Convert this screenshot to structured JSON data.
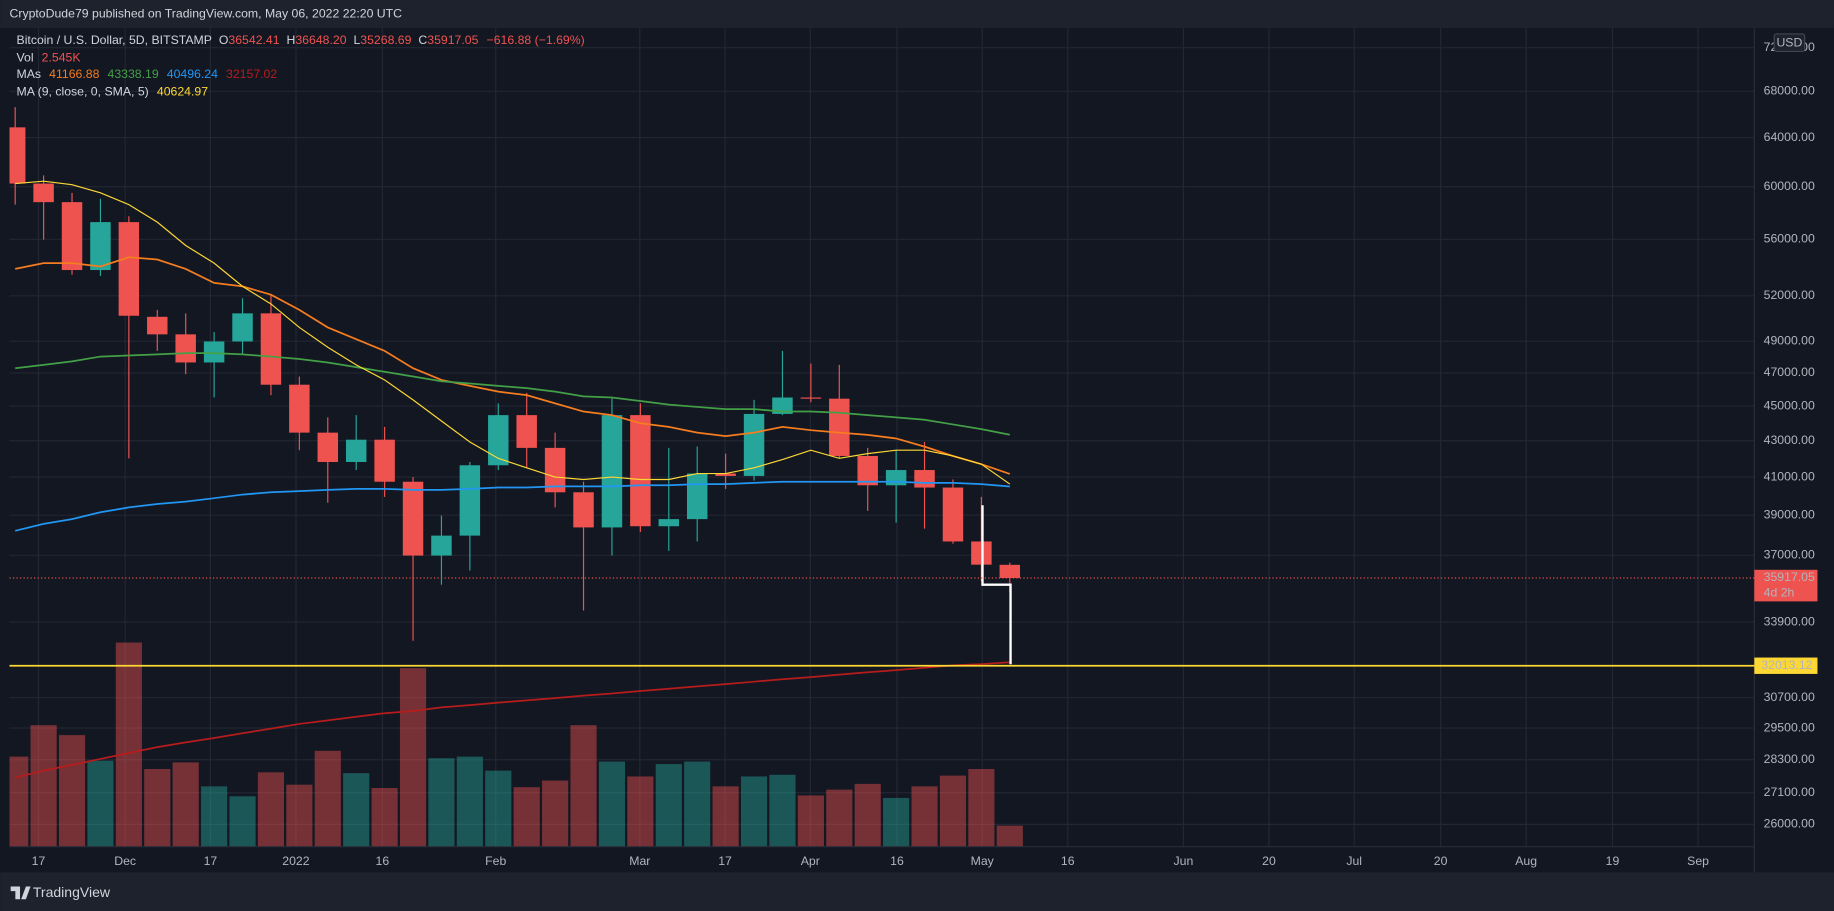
{
  "chart_data": {
    "type": "candlestick",
    "header": "CryptoDude79 published on TradingView.com, May 06, 2022 22:20 UTC",
    "footer": "TradingView",
    "symbol": "Bitcoin / U.S. Dollar, 5D, BITSTAMP",
    "legend_ohlc": [
      {
        "key": "O",
        "label": "36542.41"
      },
      {
        "key": "H",
        "label": "36648.20"
      },
      {
        "key": "L",
        "label": "35268.69"
      },
      {
        "key": "C",
        "label": "35917.05"
      }
    ],
    "change": "−616.88 (−1.69%)",
    "currency": "USD",
    "up_color": "#26a69a",
    "down_color": "#ef5350",
    "log": true,
    "grid": true,
    "x": [
      0,
      1,
      2,
      3,
      4,
      5,
      6,
      7,
      8,
      9,
      10,
      11,
      12,
      13,
      14,
      15,
      16,
      17,
      18,
      19,
      20,
      21,
      22,
      23,
      24,
      25,
      26,
      27,
      28,
      29,
      30,
      31,
      32,
      33,
      34,
      35
    ],
    "open": [
      64860,
      60250,
      58800,
      53790,
      57280,
      50590,
      49440,
      47650,
      48980,
      50820,
      46280,
      43460,
      41820,
      43060,
      40750,
      36990,
      37970,
      41640,
      44470,
      42600,
      40190,
      38380,
      44470,
      38440,
      38800,
      41190,
      41060,
      44540,
      45510,
      45440,
      42150,
      40560,
      41380,
      40440,
      37680,
      36542.41
    ],
    "high": [
      66600,
      60900,
      59520,
      59060,
      57720,
      51050,
      50820,
      49590,
      51840,
      52080,
      46780,
      44340,
      44470,
      43790,
      41000,
      38980,
      41820,
      45160,
      45790,
      43460,
      40750,
      45510,
      45160,
      42600,
      42670,
      42280,
      45370,
      48380,
      47580,
      47500,
      42600,
      42470,
      42930,
      40870,
      39950,
      36648.2
    ],
    "low": [
      58610,
      55980,
      53460,
      53380,
      42020,
      48380,
      46920,
      45510,
      48160,
      45650,
      42470,
      39640,
      41380,
      39950,
      33080,
      35600,
      36270,
      41380,
      41500,
      39400,
      34420,
      36990,
      38150,
      37220,
      37680,
      40370,
      40810,
      44470,
      45230,
      42020,
      39220,
      38620,
      38320,
      37570,
      35770,
      35268.69
    ],
    "close": [
      60250,
      58800,
      53790,
      57280,
      50660,
      49440,
      47650,
      48980,
      50820,
      46280,
      43460,
      41820,
      43060,
      40750,
      36990,
      37970,
      41640,
      44470,
      42600,
      40190,
      38380,
      44470,
      38440,
      38800,
      41190,
      41060,
      44540,
      45510,
      45440,
      42150,
      40560,
      41380,
      40440,
      37680,
      36550,
      35917.05
    ],
    "volume": {
      "label": "Vol",
      "last_label": "2.545K",
      "vlim": [
        0,
        30000
      ],
      "values": [
        10900,
        14700,
        13500,
        10400,
        24700,
        9400,
        10200,
        7300,
        6100,
        9000,
        7500,
        11600,
        8900,
        7100,
        21600,
        10700,
        10900,
        9200,
        7200,
        8000,
        14700,
        10300,
        8500,
        10000,
        10300,
        7300,
        8500,
        8700,
        6200,
        6900,
        7600,
        5900,
        7300,
        8600,
        9400,
        2545
      ]
    },
    "mas": {
      "label": "MAs",
      "series": [
        {
          "color": "#f57c1f",
          "values": [
            53870,
            54280,
            54280,
            54040,
            54700,
            54540,
            53870,
            52890,
            52650,
            52080,
            51050,
            49890,
            49130,
            48380,
            47290,
            46570,
            46210,
            45860,
            45650,
            45160,
            44680,
            44470,
            44000,
            43790,
            43460,
            43260,
            43460,
            43790,
            43600,
            43460,
            43330,
            43130,
            42670,
            42150,
            41700,
            41166.88
          ]
        },
        {
          "color": "#43a047",
          "values": [
            47290,
            47500,
            47720,
            48020,
            48090,
            48160,
            48240,
            48240,
            48160,
            48020,
            47870,
            47650,
            47360,
            47070,
            46780,
            46490,
            46350,
            46210,
            46070,
            45860,
            45580,
            45510,
            45300,
            45090,
            44950,
            44820,
            44820,
            44680,
            44680,
            44610,
            44470,
            44340,
            44200,
            43930,
            43660,
            43338.19
          ]
        },
        {
          "color": "#2196f3",
          "values": [
            38210,
            38560,
            38800,
            39150,
            39400,
            39580,
            39700,
            39880,
            40070,
            40190,
            40250,
            40320,
            40370,
            40370,
            40320,
            40320,
            40370,
            40440,
            40440,
            40500,
            40500,
            40500,
            40560,
            40560,
            40620,
            40620,
            40690,
            40750,
            40750,
            40750,
            40750,
            40750,
            40690,
            40690,
            40620,
            40496.24
          ]
        },
        {
          "color": "#b71c1c",
          "values": [
            27640,
            27900,
            28110,
            28330,
            28550,
            28770,
            28950,
            29120,
            29300,
            29480,
            29660,
            29800,
            29940,
            30080,
            30170,
            30310,
            30400,
            30500,
            30590,
            30680,
            30780,
            30870,
            30970,
            31060,
            31160,
            31250,
            31350,
            31450,
            31540,
            31640,
            31740,
            31830,
            31930,
            32030,
            32080,
            32157.02
          ]
        }
      ]
    },
    "ma9": {
      "label": "MA (9, close, 0, SMA, 5)",
      "color": "#fdd835",
      "values": [
        60250,
        60440,
        60160,
        59520,
        58610,
        57280,
        55550,
        54280,
        52650,
        51450,
        49890,
        48610,
        47500,
        46570,
        45370,
        44130,
        42930,
        42020,
        41500,
        41000,
        40870,
        41000,
        40870,
        40870,
        41190,
        41190,
        41500,
        41950,
        42470,
        42020,
        42280,
        42470,
        42470,
        42150,
        41700,
        40624.97
      ]
    },
    "last_price": {
      "value": 35917.05,
      "countdown": "4d 2h"
    },
    "hline": {
      "value": 32013.12,
      "color": "#fdd835"
    },
    "xlim": [
      -0.2,
      61.2
    ],
    "ylim": [
      25250,
      73880
    ],
    "xticks": [
      {
        "value": 0.82,
        "label": "17"
      },
      {
        "value": 3.87,
        "label": "Dec"
      },
      {
        "value": 6.87,
        "label": "17"
      },
      {
        "value": 9.88,
        "label": "2022"
      },
      {
        "value": 12.92,
        "label": "16"
      },
      {
        "value": 16.91,
        "label": "Feb"
      },
      {
        "value": 21.98,
        "label": "Mar"
      },
      {
        "value": 24.98,
        "label": "17"
      },
      {
        "value": 27.98,
        "label": "Apr"
      },
      {
        "value": 31.03,
        "label": "16"
      },
      {
        "value": 34.03,
        "label": "May"
      },
      {
        "value": 37.04,
        "label": "16"
      },
      {
        "value": 41.11,
        "label": "Jun"
      },
      {
        "value": 44.12,
        "label": "20"
      },
      {
        "value": 47.12,
        "label": "Jul"
      },
      {
        "value": 50.16,
        "label": "20"
      },
      {
        "value": 53.17,
        "label": "Aug"
      },
      {
        "value": 56.21,
        "label": "19"
      },
      {
        "value": 59.22,
        "label": "Sep"
      }
    ],
    "yticks": [
      {
        "value": 26000,
        "label": "26000.00"
      },
      {
        "value": 27100,
        "label": "27100.00"
      },
      {
        "value": 28300,
        "label": "28300.00"
      },
      {
        "value": 29500,
        "label": "29500.00"
      },
      {
        "value": 30700,
        "label": "30700.00"
      },
      {
        "value": 33900,
        "label": "33900.00"
      },
      {
        "value": 37000,
        "label": "37000.00"
      },
      {
        "value": 39000,
        "label": "39000.00"
      },
      {
        "value": 41000,
        "label": "41000.00"
      },
      {
        "value": 43000,
        "label": "43000.00"
      },
      {
        "value": 45000,
        "label": "45000.00"
      },
      {
        "value": 47000,
        "label": "47000.00"
      },
      {
        "value": 49000,
        "label": "49000.00"
      },
      {
        "value": 52000,
        "label": "52000.00"
      },
      {
        "value": 56000,
        "label": "56000.00"
      },
      {
        "value": 60000,
        "label": "60000.00"
      },
      {
        "value": 64000,
        "label": "64000.00"
      },
      {
        "value": 68000,
        "label": "68000.00"
      },
      {
        "value": 72000,
        "label": "72000.00"
      }
    ]
  }
}
